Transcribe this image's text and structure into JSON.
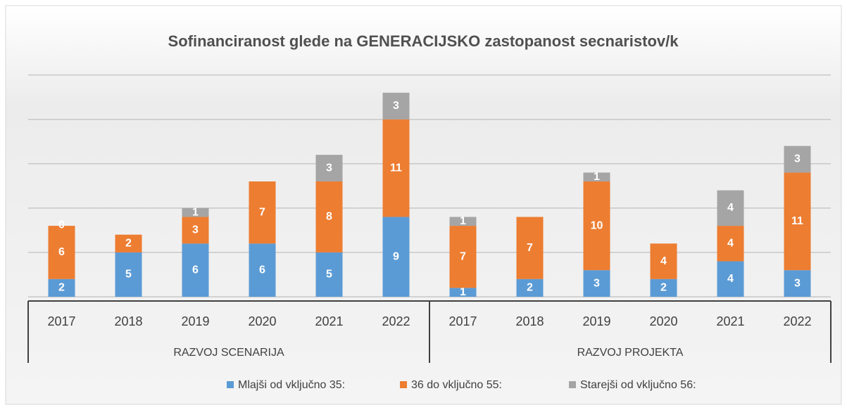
{
  "chart_data": {
    "type": "stacked-bar",
    "title": "Sofinanciranost glede na GENERACIJSKO zastopanost secnaristov/k",
    "categories": [
      "2017",
      "2018",
      "2019",
      "2020",
      "2021",
      "2022",
      "2017",
      "2018",
      "2019",
      "2020",
      "2021",
      "2022"
    ],
    "groups": [
      "RAZVOJ SCENARIJA",
      "RAZVOJ PROJEKTA"
    ],
    "series": [
      {
        "name": "Mlajši od vključno 35:",
        "color": "#5b9bd5",
        "values": [
          2,
          5,
          6,
          6,
          5,
          9,
          1,
          2,
          3,
          2,
          4,
          3
        ]
      },
      {
        "name": "36 do vključno 55:",
        "color": "#ed7d31",
        "values": [
          6,
          2,
          3,
          7,
          8,
          11,
          7,
          7,
          10,
          4,
          4,
          11
        ]
      },
      {
        "name": "Starejši od vključno 56:",
        "color": "#a5a5a5",
        "values": [
          0,
          null,
          1,
          null,
          3,
          3,
          1,
          null,
          1,
          null,
          4,
          3
        ]
      }
    ],
    "ylim": [
      0,
      26
    ],
    "yticks": [
      0,
      5,
      10,
      15,
      20,
      25
    ],
    "grid": true,
    "legend": "bottom"
  }
}
